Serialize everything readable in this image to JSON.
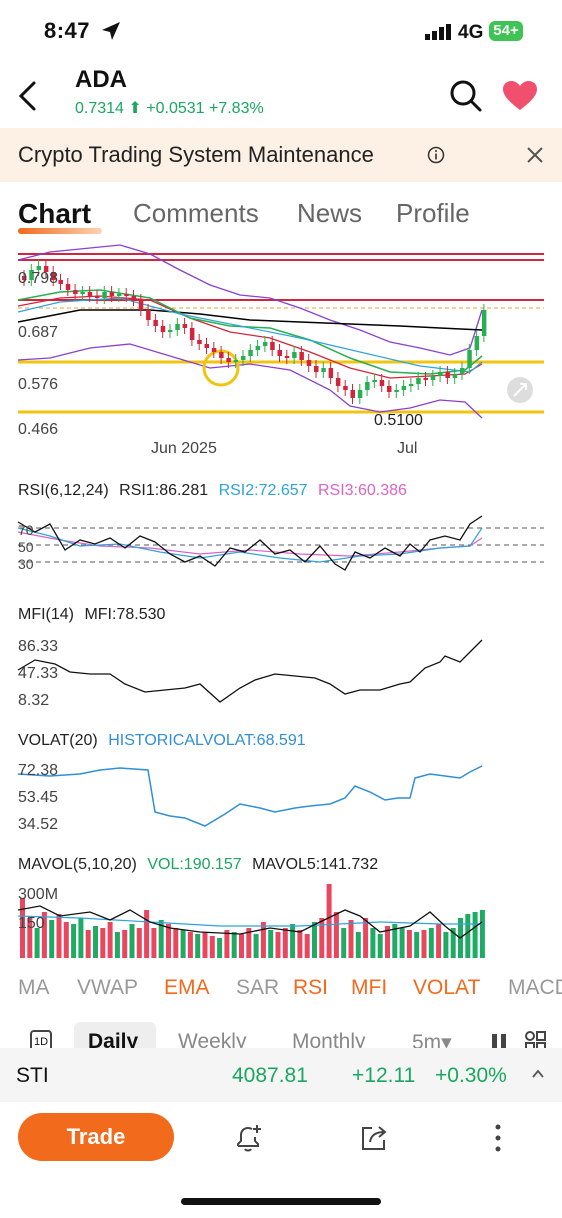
{
  "status_bar": {
    "time": "8:47",
    "network": "4G",
    "battery": "54+"
  },
  "header": {
    "symbol": "ADA",
    "price": "0.7314",
    "change": "+0.0531",
    "change_pct": "+7.83%",
    "up_color": "#1aa760",
    "heart_color": "#f0506e"
  },
  "banner": {
    "text": "Crypto Trading System Maintenance"
  },
  "tabs": [
    {
      "label": "Chart"
    },
    {
      "label": "Comments"
    },
    {
      "label": "News"
    },
    {
      "label": "Profile"
    }
  ],
  "main_chart": {
    "y_labels": [
      "0.798",
      "0.687",
      "0.576",
      "0.466"
    ],
    "x_labels": [
      "Jun 2025",
      "Jul"
    ],
    "low_annotation": "0.5100"
  },
  "rsi": {
    "title": "RSI(6,12,24)",
    "rsi1": "RSI1:86.281",
    "rsi2": "RSI2:72.657",
    "rsi3": "RSI3:60.386",
    "levels": [
      "70",
      "50",
      "30"
    ]
  },
  "mfi": {
    "title": "MFI(14)",
    "value": "MFI:78.530",
    "levels": [
      "86.33",
      "47.33",
      "8.32"
    ]
  },
  "volat": {
    "title": "VOLAT(20)",
    "value": "HISTORICALVOLAT:68.591",
    "levels": [
      "72.38",
      "53.45",
      "34.52"
    ]
  },
  "mavol": {
    "title": "MAVOL(5,10,20)",
    "vol": "VOL:190.157",
    "mavol5": "MAVOL5:141.732",
    "levels": [
      "300M",
      "150"
    ]
  },
  "indicators": [
    {
      "label": "MA",
      "active": false
    },
    {
      "label": "VWAP",
      "active": false
    },
    {
      "label": "EMA",
      "active": true
    },
    {
      "label": "SAR",
      "active": false
    },
    {
      "label": "RSI",
      "active": true
    },
    {
      "label": "MFI",
      "active": true
    },
    {
      "label": "VOLAT",
      "active": true
    },
    {
      "label": "MACD",
      "active": false
    }
  ],
  "periods": {
    "icon_label": "1D",
    "items": [
      "Daily",
      "Weekly",
      "Monthly",
      "5m▾"
    ]
  },
  "ticker": {
    "name": "STI",
    "value": "4087.81",
    "change": "+12.11",
    "change_pct": "+0.30%"
  },
  "bottom": {
    "trade_label": "Trade"
  }
}
